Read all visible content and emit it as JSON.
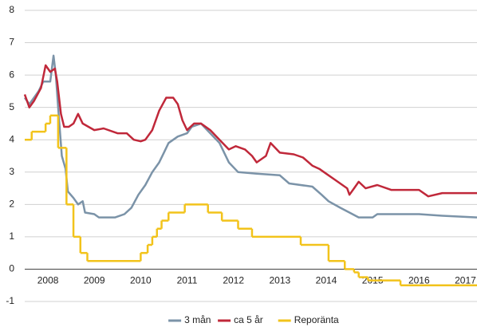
{
  "chart_data": {
    "type": "line",
    "xlim": [
      2008,
      2017.75
    ],
    "xticks": [
      {
        "value": 2008.5,
        "label": "2008"
      },
      {
        "value": 2009.5,
        "label": "2009"
      },
      {
        "value": 2010.5,
        "label": "2010"
      },
      {
        "value": 2011.5,
        "label": "2011"
      },
      {
        "value": 2012.5,
        "label": "2012"
      },
      {
        "value": 2013.5,
        "label": "2013"
      },
      {
        "value": 2014.5,
        "label": "2014"
      },
      {
        "value": 2015.5,
        "label": "2015"
      },
      {
        "value": 2016.5,
        "label": "2016"
      },
      {
        "value": 2017.5,
        "label": "2017"
      }
    ],
    "ylim": [
      -1,
      8
    ],
    "yticks": [
      -1,
      0,
      1,
      2,
      3,
      4,
      5,
      6,
      7,
      8
    ],
    "grid": true,
    "legend": "bottom",
    "series": [
      {
        "name": "3 mån",
        "color": "#7b93a8",
        "step": false,
        "x": [
          2008.0,
          2008.1,
          2008.3,
          2008.4,
          2008.55,
          2008.62,
          2008.67,
          2008.72,
          2008.8,
          2008.88,
          2008.93,
          2009.05,
          2009.15,
          2009.25,
          2009.3,
          2009.5,
          2009.6,
          2009.95,
          2010.15,
          2010.3,
          2010.45,
          2010.6,
          2010.75,
          2010.9,
          2011.0,
          2011.1,
          2011.3,
          2011.5,
          2011.6,
          2011.8,
          2012.0,
          2012.2,
          2012.4,
          2012.6,
          2013.0,
          2013.5,
          2013.7,
          2014.2,
          2014.4,
          2014.55,
          2014.8,
          2015.0,
          2015.2,
          2015.5,
          2015.6,
          2016.5,
          2017.0,
          2017.75
        ],
        "values": [
          5.3,
          5.1,
          5.5,
          5.8,
          5.8,
          6.6,
          6.0,
          5.0,
          3.5,
          3.1,
          2.4,
          2.2,
          2.0,
          2.1,
          1.75,
          1.7,
          1.6,
          1.6,
          1.7,
          1.9,
          2.3,
          2.6,
          3.0,
          3.3,
          3.6,
          3.9,
          4.1,
          4.2,
          4.4,
          4.5,
          4.2,
          3.9,
          3.3,
          3.0,
          2.95,
          2.9,
          2.65,
          2.55,
          2.3,
          2.1,
          1.9,
          1.75,
          1.6,
          1.6,
          1.7,
          1.7,
          1.65,
          1.6
        ]
      },
      {
        "name": "ca 5 år",
        "color": "#c0283a",
        "step": false,
        "x": [
          2008.0,
          2008.1,
          2008.2,
          2008.35,
          2008.45,
          2008.55,
          2008.65,
          2008.7,
          2008.78,
          2008.85,
          2008.95,
          2009.05,
          2009.15,
          2009.25,
          2009.5,
          2009.7,
          2010.0,
          2010.2,
          2010.35,
          2010.5,
          2010.6,
          2010.75,
          2010.9,
          2011.05,
          2011.2,
          2011.3,
          2011.4,
          2011.5,
          2011.65,
          2011.8,
          2012.0,
          2012.2,
          2012.4,
          2012.55,
          2012.75,
          2012.9,
          2013.0,
          2013.2,
          2013.3,
          2013.5,
          2013.8,
          2014.0,
          2014.2,
          2014.35,
          2014.5,
          2014.7,
          2014.95,
          2015.0,
          2015.1,
          2015.2,
          2015.35,
          2015.6,
          2015.9,
          2016.5,
          2016.7,
          2017.0,
          2017.75
        ],
        "values": [
          5.4,
          5.0,
          5.2,
          5.6,
          6.3,
          6.1,
          6.2,
          5.8,
          4.8,
          4.4,
          4.4,
          4.5,
          4.8,
          4.5,
          4.3,
          4.35,
          4.2,
          4.2,
          4.0,
          3.95,
          4.0,
          4.3,
          4.9,
          5.3,
          5.3,
          5.1,
          4.6,
          4.3,
          4.5,
          4.5,
          4.3,
          4.0,
          3.7,
          3.8,
          3.7,
          3.5,
          3.3,
          3.5,
          3.9,
          3.6,
          3.55,
          3.45,
          3.2,
          3.1,
          2.95,
          2.75,
          2.5,
          2.3,
          2.5,
          2.7,
          2.5,
          2.6,
          2.45,
          2.45,
          2.25,
          2.35,
          2.35
        ]
      },
      {
        "name": "Reporänta",
        "color": "#f2c31b",
        "step": true,
        "x": [
          2008.0,
          2008.15,
          2008.45,
          2008.55,
          2008.72,
          2008.9,
          2009.05,
          2009.2,
          2009.35,
          2010.5,
          2010.65,
          2010.75,
          2010.85,
          2010.95,
          2011.1,
          2011.45,
          2011.95,
          2012.25,
          2012.6,
          2012.9,
          2013.95,
          2014.55,
          2014.9,
          2015.1,
          2015.2,
          2015.4,
          2016.1
        ],
        "values": [
          4.0,
          4.25,
          4.5,
          4.75,
          3.75,
          2.0,
          1.0,
          0.5,
          0.25,
          0.5,
          0.75,
          1.0,
          1.25,
          1.5,
          1.75,
          2.0,
          1.75,
          1.5,
          1.25,
          1.0,
          0.75,
          0.25,
          0.0,
          -0.1,
          -0.25,
          -0.35,
          -0.5
        ]
      }
    ]
  }
}
